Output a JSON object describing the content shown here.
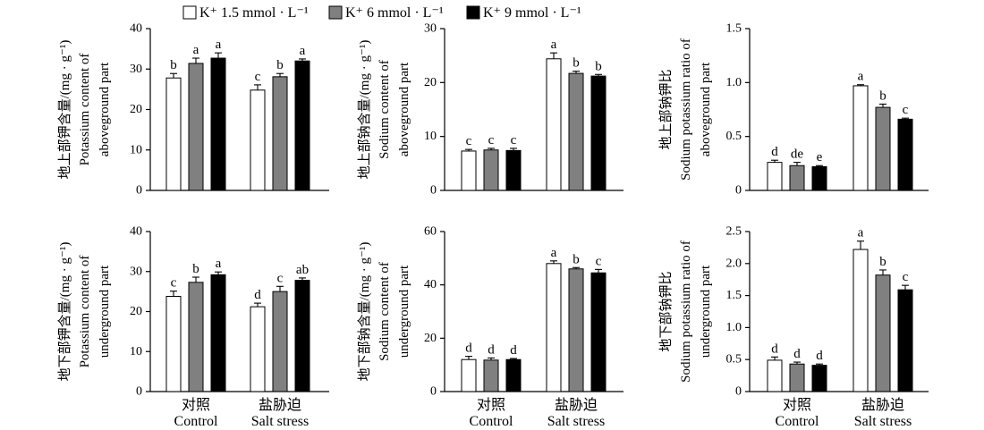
{
  "chart_data": {
    "type": "bar",
    "legend_position": "top-center",
    "grid": false,
    "legend": [
      {
        "label": "K⁺ 1.5 mmol · L⁻¹",
        "color": "#ffffff"
      },
      {
        "label": "K⁺ 6 mmol · L⁻¹",
        "color": "#808080"
      },
      {
        "label": "K⁺ 9 mmol · L⁻¹",
        "color": "#000000"
      }
    ],
    "categories": [
      {
        "zh": "对照",
        "en": "Control"
      },
      {
        "zh": "盐胁迫",
        "en": "Salt stress"
      }
    ],
    "panels": [
      {
        "ylabel": [
          "地上部钾含量/(mg · g⁻¹)",
          "Potassium content of",
          "aboveground part"
        ],
        "ylim": [
          0,
          40
        ],
        "yticks": [
          "0",
          "10",
          "20",
          "30",
          "40"
        ],
        "series": [
          {
            "values": [
              27.8,
              24.8
            ],
            "errors": [
              1.1,
              1.3
            ],
            "letters": [
              "b",
              "c"
            ]
          },
          {
            "values": [
              31.4,
              28.1
            ],
            "errors": [
              1.3,
              0.8
            ],
            "letters": [
              "a",
              "b"
            ]
          },
          {
            "values": [
              32.7,
              32.0
            ],
            "errors": [
              1.3,
              0.5
            ],
            "letters": [
              "a",
              "a"
            ]
          }
        ]
      },
      {
        "ylabel": [
          "地上部钠含量/(mg · g⁻¹)",
          "Sodium content of",
          "aboveground part"
        ],
        "ylim": [
          0,
          30
        ],
        "yticks": [
          "0",
          "10",
          "20",
          "30"
        ],
        "series": [
          {
            "values": [
              7.3,
              24.4
            ],
            "errors": [
              0.3,
              1.1
            ],
            "letters": [
              "c",
              "a"
            ]
          },
          {
            "values": [
              7.5,
              21.7
            ],
            "errors": [
              0.3,
              0.4
            ],
            "letters": [
              "c",
              "b"
            ]
          },
          {
            "values": [
              7.4,
              21.2
            ],
            "errors": [
              0.4,
              0.3
            ],
            "letters": [
              "c",
              "b"
            ]
          }
        ]
      },
      {
        "ylabel": [
          "地上部钠钾比",
          "Sodium potassium ratio of",
          "aboveground part"
        ],
        "ylim": [
          0,
          1.5
        ],
        "yticks": [
          "0",
          "0.5",
          "1.0",
          "1.5"
        ],
        "series": [
          {
            "values": [
              0.26,
              0.97
            ],
            "errors": [
              0.02,
              0.01
            ],
            "letters": [
              "d",
              "a"
            ]
          },
          {
            "values": [
              0.23,
              0.77
            ],
            "errors": [
              0.03,
              0.03
            ],
            "letters": [
              "de",
              "b"
            ]
          },
          {
            "values": [
              0.22,
              0.66
            ],
            "errors": [
              0.01,
              0.01
            ],
            "letters": [
              "e",
              "c"
            ]
          }
        ]
      },
      {
        "ylabel": [
          "地下部钾含量/(mg · g⁻¹)",
          "Potassium content of",
          "underground part"
        ],
        "ylim": [
          0,
          40
        ],
        "yticks": [
          "0",
          "10",
          "20",
          "30",
          "40"
        ],
        "series": [
          {
            "values": [
              23.8,
              21.2
            ],
            "errors": [
              1.3,
              0.9
            ],
            "letters": [
              "c",
              "d"
            ]
          },
          {
            "values": [
              27.3,
              25.0
            ],
            "errors": [
              1.3,
              1.3
            ],
            "letters": [
              "b",
              "c"
            ]
          },
          {
            "values": [
              29.2,
              27.8
            ],
            "errors": [
              0.7,
              0.6
            ],
            "letters": [
              "a",
              "ab"
            ]
          }
        ]
      },
      {
        "ylabel": [
          "地下部钠含量/(mg · g⁻¹)",
          "Sodium content of",
          "underground part"
        ],
        "ylim": [
          0,
          60
        ],
        "yticks": [
          "0",
          "20",
          "40",
          "60"
        ],
        "series": [
          {
            "values": [
              12.0,
              48.0
            ],
            "errors": [
              1.2,
              1.0
            ],
            "letters": [
              "d",
              "a"
            ]
          },
          {
            "values": [
              11.8,
              46.0
            ],
            "errors": [
              0.8,
              0.5
            ],
            "letters": [
              "d",
              "b"
            ]
          },
          {
            "values": [
              12.0,
              44.5
            ],
            "errors": [
              0.4,
              1.3
            ],
            "letters": [
              "d",
              "c"
            ]
          }
        ]
      },
      {
        "ylabel": [
          "地下部钠钾比",
          "Sodium potassium ratio of",
          "underground part"
        ],
        "ylim": [
          0,
          2.5
        ],
        "yticks": [
          "0",
          "0.5",
          "1.0",
          "1.5",
          "2.0",
          "2.5"
        ],
        "series": [
          {
            "values": [
              0.49,
              2.22
            ],
            "errors": [
              0.05,
              0.13
            ],
            "letters": [
              "d",
              "a"
            ]
          },
          {
            "values": [
              0.43,
              1.82
            ],
            "errors": [
              0.03,
              0.08
            ],
            "letters": [
              "d",
              "b"
            ]
          },
          {
            "values": [
              0.41,
              1.59
            ],
            "errors": [
              0.02,
              0.07
            ],
            "letters": [
              "d",
              "c"
            ]
          }
        ]
      }
    ]
  }
}
